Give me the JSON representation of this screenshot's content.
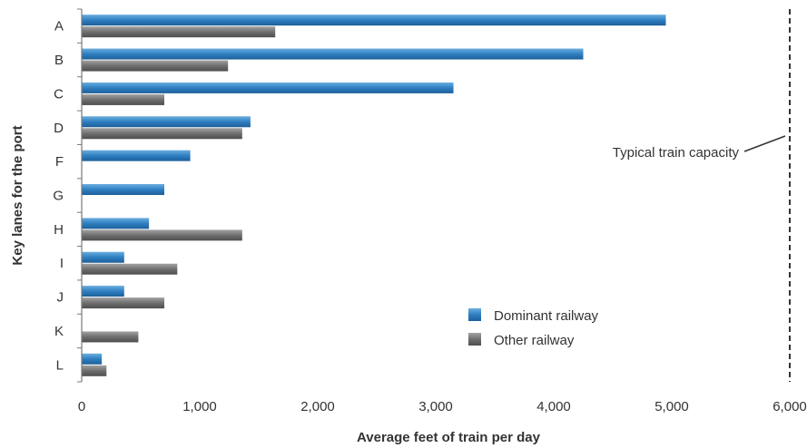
{
  "chart_data": {
    "type": "bar",
    "orientation": "horizontal",
    "categories": [
      "A",
      "B",
      "C",
      "D",
      "F",
      "G",
      "H",
      "I",
      "J",
      "K",
      "L"
    ],
    "series": [
      {
        "name": "Dominant railway",
        "values": [
          4950,
          4250,
          3150,
          1430,
          920,
          700,
          570,
          360,
          360,
          null,
          170
        ],
        "color": "#2f7fc1"
      },
      {
        "name": "Other railway",
        "values": [
          1640,
          1240,
          700,
          1360,
          null,
          null,
          1360,
          810,
          700,
          480,
          210
        ],
        "color": "#6f6f6f"
      }
    ],
    "xlabel": "Average feet of train per day",
    "ylabel": "Key lanes for the port",
    "xlim": [
      0,
      6000
    ],
    "xticks": [
      0,
      1000,
      2000,
      3000,
      4000,
      5000,
      6000
    ],
    "xtick_labels": [
      "0",
      "1,000",
      "2,000",
      "3,000",
      "4,000",
      "5,000",
      "6,000"
    ],
    "reference_line": {
      "value": 6000,
      "label": "Typical train capacity",
      "style": "dashed"
    },
    "legend_placement": "lower-right",
    "grid": false
  }
}
